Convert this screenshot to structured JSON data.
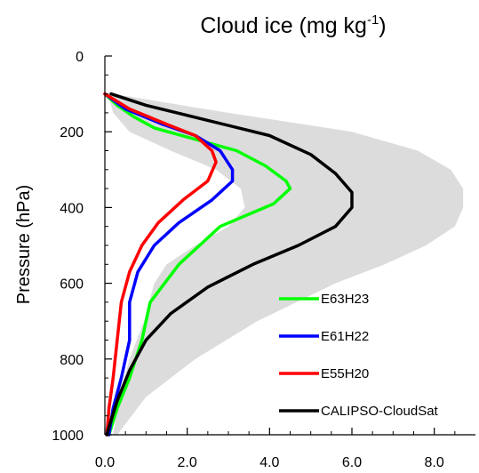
{
  "chart_data": {
    "type": "line",
    "title": "Cloud ice (mg kg",
    "title_superscript": "-1",
    "title_suffix": ")",
    "xlabel": "",
    "ylabel": "Pressure (hPa)",
    "xlim": [
      0,
      9
    ],
    "ylim": [
      1000,
      0
    ],
    "y_inverted": true,
    "xticks": [
      "0.0",
      "2.0",
      "4.0",
      "6.0",
      "8.0"
    ],
    "xtick_values": [
      0,
      2,
      4,
      6,
      8
    ],
    "yticks": [
      "0",
      "200",
      "400",
      "600",
      "800",
      "1000"
    ],
    "ytick_values": [
      0,
      200,
      400,
      600,
      800,
      1000
    ],
    "grid": false,
    "legend_position": "bottom-right",
    "shaded_range": {
      "color": "#dcdcdc",
      "lower": [
        [
          0.08,
          100
        ],
        [
          0.2,
          150
        ],
        [
          0.6,
          200
        ],
        [
          1.6,
          250
        ],
        [
          2.7,
          300
        ],
        [
          3.3,
          350
        ],
        [
          3.4,
          400
        ],
        [
          3.0,
          450
        ],
        [
          2.2,
          500
        ],
        [
          1.5,
          550
        ],
        [
          1.2,
          600
        ],
        [
          0.95,
          700
        ],
        [
          0.6,
          800
        ],
        [
          0.35,
          900
        ],
        [
          0.2,
          1000
        ]
      ],
      "upper": [
        [
          0.2,
          100
        ],
        [
          3.0,
          150
        ],
        [
          6.0,
          200
        ],
        [
          7.6,
          250
        ],
        [
          8.4,
          300
        ],
        [
          8.7,
          350
        ],
        [
          8.7,
          400
        ],
        [
          8.5,
          450
        ],
        [
          7.8,
          500
        ],
        [
          6.8,
          550
        ],
        [
          5.6,
          600
        ],
        [
          3.7,
          700
        ],
        [
          2.2,
          800
        ],
        [
          1.0,
          900
        ],
        [
          0.3,
          1000
        ]
      ]
    },
    "series": [
      {
        "name": "E63H23",
        "color": "#00ff00",
        "points": [
          [
            0.0,
            100
          ],
          [
            0.3,
            130
          ],
          [
            0.7,
            160
          ],
          [
            1.2,
            190
          ],
          [
            2.2,
            220
          ],
          [
            3.2,
            250
          ],
          [
            3.9,
            290
          ],
          [
            4.4,
            330
          ],
          [
            4.5,
            350
          ],
          [
            4.1,
            390
          ],
          [
            2.8,
            450
          ],
          [
            1.8,
            550
          ],
          [
            1.1,
            650
          ],
          [
            0.9,
            750
          ],
          [
            0.6,
            850
          ],
          [
            0.3,
            930
          ],
          [
            0.1,
            1000
          ]
        ]
      },
      {
        "name": "E61H22",
        "color": "#0000ff",
        "points": [
          [
            0.0,
            100
          ],
          [
            0.5,
            140
          ],
          [
            1.4,
            180
          ],
          [
            2.2,
            210
          ],
          [
            2.8,
            250
          ],
          [
            3.1,
            300
          ],
          [
            3.1,
            330
          ],
          [
            2.6,
            380
          ],
          [
            1.8,
            440
          ],
          [
            1.2,
            500
          ],
          [
            0.8,
            570
          ],
          [
            0.6,
            650
          ],
          [
            0.6,
            750
          ],
          [
            0.4,
            850
          ],
          [
            0.2,
            930
          ],
          [
            0.1,
            1000
          ]
        ]
      },
      {
        "name": "E55H20",
        "color": "#ff0000",
        "points": [
          [
            0.0,
            100
          ],
          [
            0.6,
            140
          ],
          [
            1.5,
            180
          ],
          [
            2.2,
            210
          ],
          [
            2.6,
            250
          ],
          [
            2.7,
            280
          ],
          [
            2.5,
            330
          ],
          [
            1.9,
            380
          ],
          [
            1.3,
            440
          ],
          [
            0.9,
            500
          ],
          [
            0.6,
            570
          ],
          [
            0.4,
            650
          ],
          [
            0.3,
            750
          ],
          [
            0.2,
            850
          ],
          [
            0.1,
            930
          ],
          [
            0.05,
            1000
          ]
        ]
      },
      {
        "name": "CALIPSO-CloudSat",
        "color": "#000000",
        "points": [
          [
            0.15,
            100
          ],
          [
            1.0,
            130
          ],
          [
            2.5,
            170
          ],
          [
            4.0,
            210
          ],
          [
            5.0,
            260
          ],
          [
            5.6,
            310
          ],
          [
            6.0,
            360
          ],
          [
            6.0,
            400
          ],
          [
            5.6,
            450
          ],
          [
            4.7,
            500
          ],
          [
            3.6,
            550
          ],
          [
            2.5,
            610
          ],
          [
            1.6,
            680
          ],
          [
            1.0,
            750
          ],
          [
            0.6,
            830
          ],
          [
            0.3,
            910
          ],
          [
            0.1,
            980
          ],
          [
            0.05,
            1000
          ]
        ]
      }
    ]
  }
}
